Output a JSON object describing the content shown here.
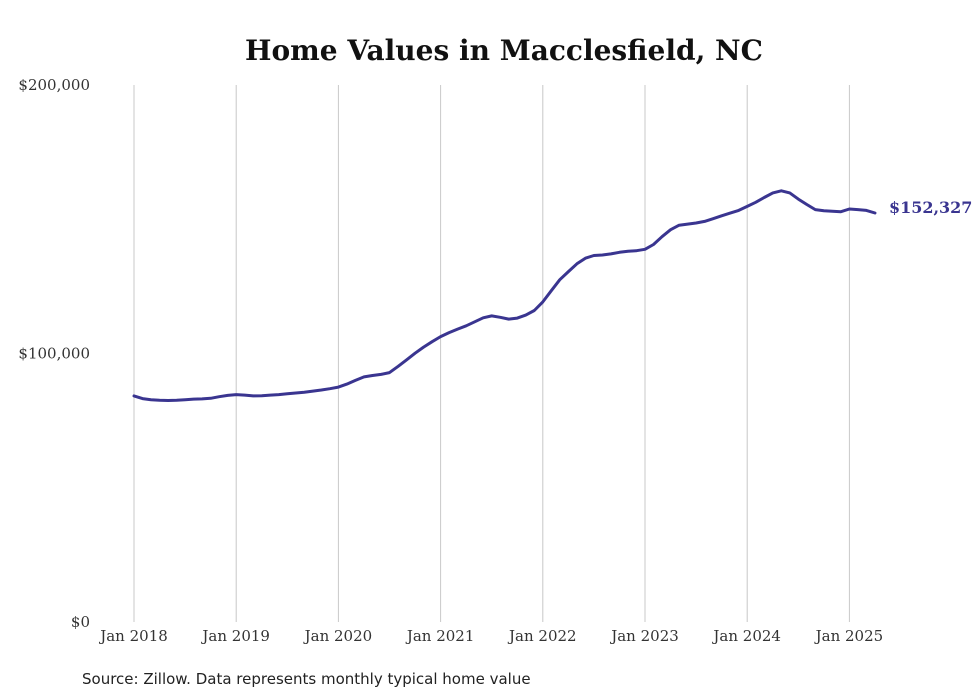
{
  "chart_data": {
    "type": "line",
    "title": "Home Values in Macclesfield, NC",
    "xlabel": "",
    "ylabel": "",
    "x_tick_labels": [
      "Jan 2018",
      "Jan 2019",
      "Jan 2020",
      "Jan 2021",
      "Jan 2022",
      "Jan 2023",
      "Jan 2024",
      "Jan 2025"
    ],
    "y_tick_labels": [
      "$0",
      "$100,000",
      "$200,000"
    ],
    "ylim": [
      0,
      200000
    ],
    "grid": "vertical",
    "line_color": "#3a3590",
    "end_label": "$152,327",
    "series": [
      {
        "x": [
          "2018-01",
          "2018-02",
          "2018-03",
          "2018-04",
          "2018-05",
          "2018-06",
          "2018-07",
          "2018-08",
          "2018-09",
          "2018-10",
          "2018-11",
          "2018-12",
          "2019-01",
          "2019-02",
          "2019-03",
          "2019-04",
          "2019-05",
          "2019-06",
          "2019-07",
          "2019-08",
          "2019-09",
          "2019-10",
          "2019-11",
          "2019-12",
          "2020-01",
          "2020-02",
          "2020-03",
          "2020-04",
          "2020-05",
          "2020-06",
          "2020-07",
          "2020-08",
          "2020-09",
          "2020-10",
          "2020-11",
          "2020-12",
          "2021-01",
          "2021-02",
          "2021-03",
          "2021-04",
          "2021-05",
          "2021-06",
          "2021-07",
          "2021-08",
          "2021-09",
          "2021-10",
          "2021-11",
          "2021-12",
          "2022-01",
          "2022-02",
          "2022-03",
          "2022-04",
          "2022-05",
          "2022-06",
          "2022-07",
          "2022-08",
          "2022-09",
          "2022-10",
          "2022-11",
          "2022-12",
          "2023-01",
          "2023-02",
          "2023-03",
          "2023-04",
          "2023-05",
          "2023-06",
          "2023-07",
          "2023-08",
          "2023-09",
          "2023-10",
          "2023-11",
          "2023-12",
          "2024-01",
          "2024-02",
          "2024-03",
          "2024-04",
          "2024-05",
          "2024-06",
          "2024-07",
          "2024-08",
          "2024-09",
          "2024-10",
          "2024-11",
          "2024-12",
          "2025-01",
          "2025-02",
          "2025-03",
          "2025-04"
        ],
        "values": [
          84200,
          83200,
          82800,
          82600,
          82500,
          82600,
          82800,
          83000,
          83100,
          83300,
          83900,
          84400,
          84700,
          84500,
          84200,
          84300,
          84500,
          84700,
          85000,
          85300,
          85600,
          86000,
          86400,
          86900,
          87500,
          88600,
          90000,
          91300,
          91800,
          92200,
          92900,
          95200,
          97600,
          100100,
          102400,
          104400,
          106300,
          107800,
          109100,
          110300,
          111800,
          113300,
          114000,
          113500,
          112800,
          113200,
          114300,
          116000,
          119200,
          123400,
          127500,
          130500,
          133400,
          135500,
          136500,
          136700,
          137100,
          137700,
          138100,
          138300,
          138800,
          140600,
          143500,
          146100,
          147800,
          148200,
          148600,
          149200,
          150200,
          151300,
          152300,
          153300,
          154800,
          156300,
          158100,
          159800,
          160600,
          159800,
          157500,
          155500,
          153600,
          153200,
          153000,
          152800,
          153800,
          153600,
          153300,
          152327
        ]
      }
    ]
  },
  "source_note": "Source: Zillow. Data represents monthly typical home value"
}
